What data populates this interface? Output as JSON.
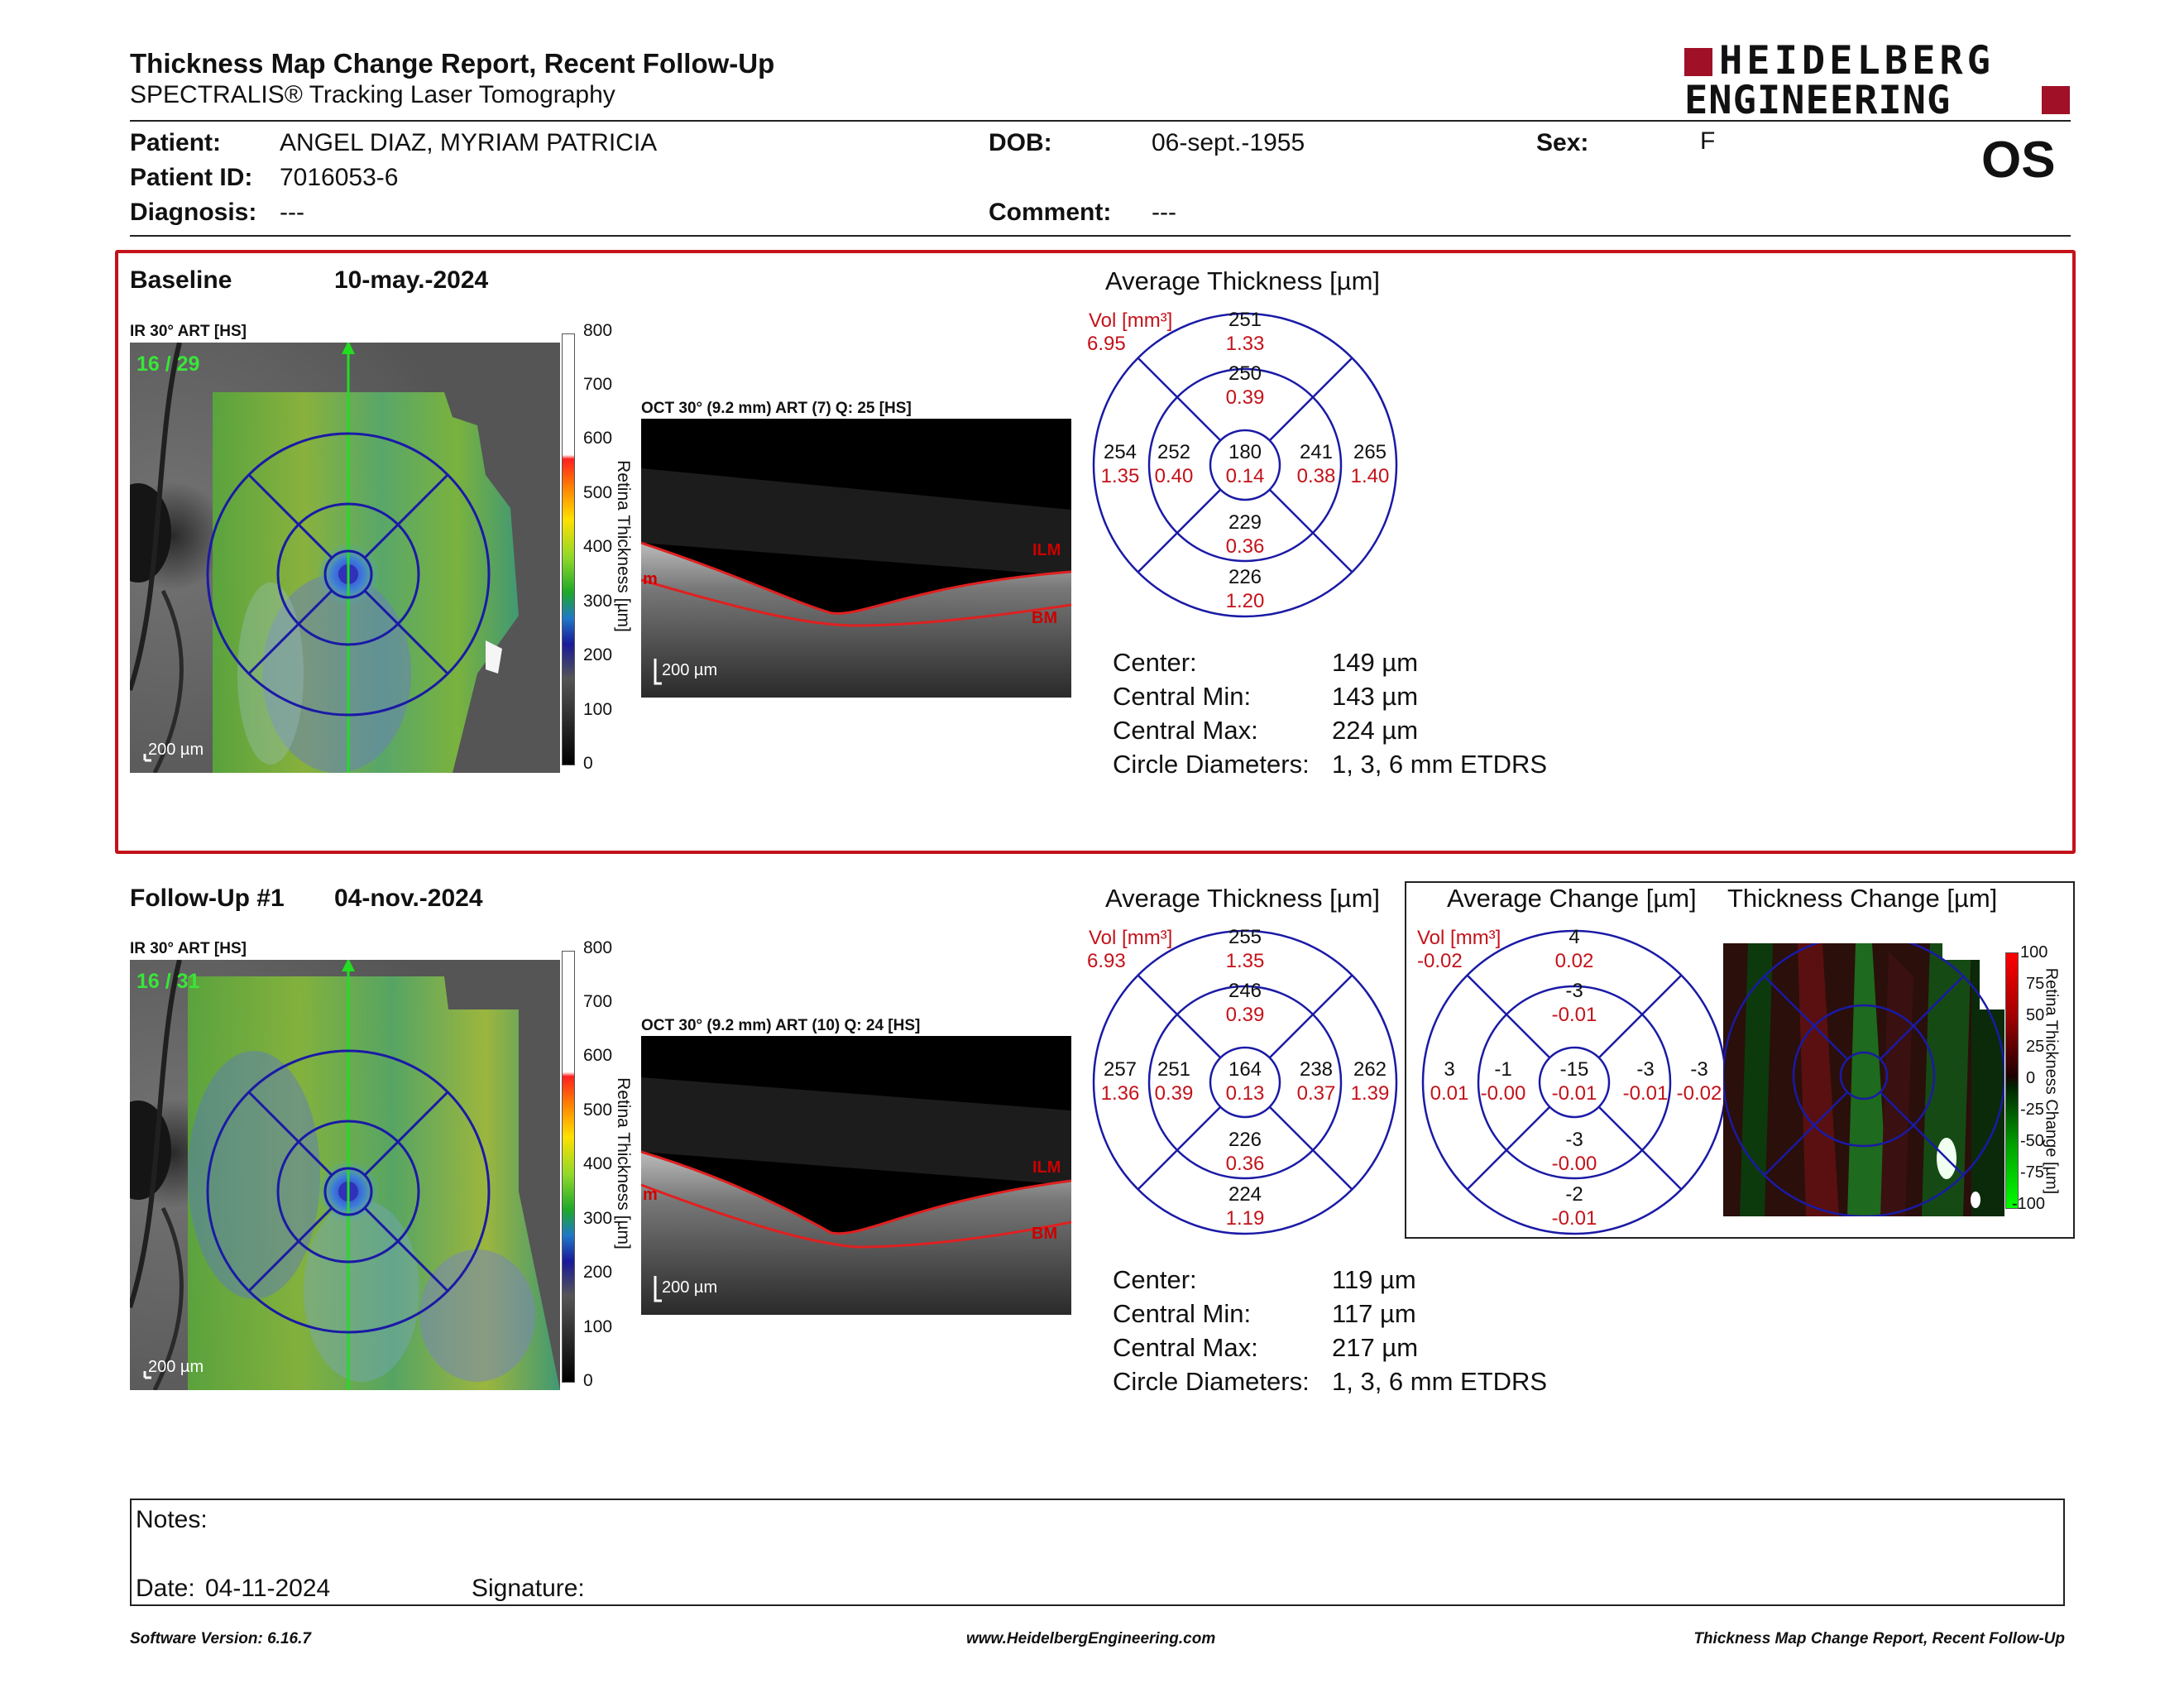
{
  "header": {
    "title": "Thickness Map Change Report, Recent Follow-Up",
    "subtitle": "SPECTRALIS® Tracking Laser Tomography",
    "logo_line1": "HEIDELBERG",
    "logo_line2": "ENGINEERING",
    "eye": "OS"
  },
  "patient": {
    "name_label": "Patient:",
    "name": "ANGEL DIAZ, MYRIAM PATRICIA",
    "id_label": "Patient ID:",
    "id": "7016053-6",
    "diagnosis_label": "Diagnosis:",
    "diagnosis": "---",
    "dob_label": "DOB:",
    "dob": "06-sept.-1955",
    "comment_label": "Comment:",
    "comment": "---",
    "sex_label": "Sex:",
    "sex": "F"
  },
  "colors": {
    "accent_red": "#c4121a",
    "etdrs_blue": "#1a1aa6",
    "value_red": "#c4121a",
    "map_green": "#4caf50"
  },
  "baseline": {
    "label": "Baseline",
    "date": "10-may.-2024",
    "ir_label": "IR 30° ART [HS]",
    "frame": "16 / 29",
    "scale_bar": "200 µm",
    "oct_label": "OCT 30° (9.2 mm) ART (7) Q: 25 [HS]",
    "oct_scale": "200 µm",
    "layer_top": "ILM",
    "layer_bottom": "BM",
    "layer_left": "m",
    "colorbar_title": "Retina Thickness [µm]",
    "colorbar_ticks": [
      "800",
      "700",
      "600",
      "500",
      "400",
      "300",
      "200",
      "100",
      "0"
    ],
    "avg_title": "Average Thickness [µm]",
    "vol_label": "Vol [mm³]",
    "vol_total": "6.95",
    "sectors": {
      "outer_sup": {
        "t": "251",
        "v": "1.33"
      },
      "inner_sup": {
        "t": "250",
        "v": "0.39"
      },
      "outer_temp": {
        "t": "254",
        "v": "1.35"
      },
      "inner_temp": {
        "t": "252",
        "v": "0.40"
      },
      "center": {
        "t": "180",
        "v": "0.14"
      },
      "inner_nasal": {
        "t": "241",
        "v": "0.38"
      },
      "outer_nasal": {
        "t": "265",
        "v": "1.40"
      },
      "inner_inf": {
        "t": "229",
        "v": "0.36"
      },
      "outer_inf": {
        "t": "226",
        "v": "1.20"
      }
    },
    "stats": [
      {
        "label": "Center:",
        "value": "149 µm"
      },
      {
        "label": "Central Min:",
        "value": "143 µm"
      },
      {
        "label": "Central Max:",
        "value": "224 µm"
      },
      {
        "label": "Circle Diameters:",
        "value": "1, 3, 6 mm ETDRS"
      }
    ]
  },
  "followup": {
    "label": "Follow-Up #1",
    "date": "04-nov.-2024",
    "ir_label": "IR 30° ART [HS]",
    "frame": "16 / 31",
    "scale_bar": "200 µm",
    "oct_label": "OCT 30° (9.2 mm) ART (10) Q: 24 [HS]",
    "oct_scale": "200 µm",
    "layer_top": "ILM",
    "layer_bottom": "BM",
    "layer_left": "m",
    "colorbar_title": "Retina Thickness [µm]",
    "colorbar_ticks": [
      "800",
      "700",
      "600",
      "500",
      "400",
      "300",
      "200",
      "100",
      "0"
    ],
    "avg_title": "Average Thickness [µm]",
    "vol_label": "Vol [mm³]",
    "vol_total": "6.93",
    "sectors": {
      "outer_sup": {
        "t": "255",
        "v": "1.35"
      },
      "inner_sup": {
        "t": "246",
        "v": "0.39"
      },
      "outer_temp": {
        "t": "257",
        "v": "1.36"
      },
      "inner_temp": {
        "t": "251",
        "v": "0.39"
      },
      "center": {
        "t": "164",
        "v": "0.13"
      },
      "inner_nasal": {
        "t": "238",
        "v": "0.37"
      },
      "outer_nasal": {
        "t": "262",
        "v": "1.39"
      },
      "inner_inf": {
        "t": "226",
        "v": "0.36"
      },
      "outer_inf": {
        "t": "224",
        "v": "1.19"
      }
    },
    "stats": [
      {
        "label": "Center:",
        "value": "119 µm"
      },
      {
        "label": "Central Min:",
        "value": "117 µm"
      },
      {
        "label": "Central Max:",
        "value": "217 µm"
      },
      {
        "label": "Circle Diameters:",
        "value": "1, 3, 6 mm ETDRS"
      }
    ]
  },
  "change": {
    "avg_title": "Average Change [µm]",
    "map_title": "Thickness Change [µm]",
    "vol_label": "Vol [mm³]",
    "vol_total": "-0.02",
    "sectors": {
      "outer_sup": {
        "t": "4",
        "v": "0.02"
      },
      "inner_sup": {
        "t": "-3",
        "v": "-0.01"
      },
      "outer_temp": {
        "t": "3",
        "v": "0.01"
      },
      "inner_temp": {
        "t": "-1",
        "v": "-0.00"
      },
      "center": {
        "t": "-15",
        "v": "-0.01"
      },
      "inner_nasal": {
        "t": "-3",
        "v": "-0.01"
      },
      "outer_nasal": {
        "t": "-3",
        "v": "-0.02"
      },
      "inner_inf": {
        "t": "-3",
        "v": "-0.00"
      },
      "outer_inf": {
        "t": "-2",
        "v": "-0.01"
      }
    },
    "colorbar_title": "Retina Thickness Change [µm]",
    "colorbar_ticks": [
      "100",
      "75",
      "50",
      "25",
      "0",
      "-25",
      "-50",
      "-75",
      "-100"
    ]
  },
  "notes": {
    "label": "Notes:",
    "date_label": "Date:",
    "date": "04-11-2024",
    "signature_label": "Signature:"
  },
  "footer": {
    "software": "Software Version: 6.16.7",
    "url": "www.HeidelbergEngineering.com",
    "report": "Thickness Map Change Report, Recent Follow-Up"
  }
}
